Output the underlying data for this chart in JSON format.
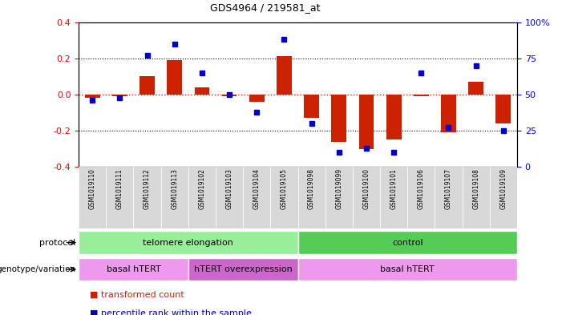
{
  "title": "GDS4964 / 219581_at",
  "samples": [
    "GSM1019110",
    "GSM1019111",
    "GSM1019112",
    "GSM1019113",
    "GSM1019102",
    "GSM1019103",
    "GSM1019104",
    "GSM1019105",
    "GSM1019098",
    "GSM1019099",
    "GSM1019100",
    "GSM1019101",
    "GSM1019106",
    "GSM1019107",
    "GSM1019108",
    "GSM1019109"
  ],
  "transformed_count": [
    -0.02,
    -0.01,
    0.1,
    0.19,
    0.04,
    -0.01,
    -0.04,
    0.21,
    -0.13,
    -0.26,
    -0.3,
    -0.25,
    -0.01,
    -0.21,
    0.07,
    -0.16
  ],
  "percentile_rank": [
    46,
    48,
    77,
    85,
    65,
    50,
    38,
    88,
    30,
    10,
    13,
    10,
    65,
    27,
    70,
    25
  ],
  "ylim_left": [
    -0.4,
    0.4
  ],
  "ylim_right": [
    0,
    100
  ],
  "bar_color": "#cc2200",
  "dot_color": "#0000cc",
  "protocol_groups": [
    {
      "label": "telomere elongation",
      "start": 0,
      "end": 7,
      "color": "#99ee99"
    },
    {
      "label": "control",
      "start": 8,
      "end": 15,
      "color": "#55cc55"
    }
  ],
  "genotype_groups": [
    {
      "label": "basal hTERT",
      "start": 0,
      "end": 3,
      "color": "#ee99ee"
    },
    {
      "label": "hTERT overexpression",
      "start": 4,
      "end": 7,
      "color": "#cc66cc"
    },
    {
      "label": "basal hTERT",
      "start": 8,
      "end": 15,
      "color": "#ee99ee"
    }
  ],
  "protocol_label": "protocol",
  "genotype_label": "genotype/variation",
  "legend_items": [
    {
      "color": "#cc2200",
      "label": "transformed count"
    },
    {
      "color": "#0000cc",
      "label": "percentile rank within the sample"
    }
  ],
  "yticks_left": [
    -0.4,
    -0.2,
    0.0,
    0.2,
    0.4
  ],
  "yticks_right": [
    0,
    25,
    50,
    75,
    100
  ],
  "ytick_labels_right": [
    "0",
    "25",
    "50",
    "75",
    "100%"
  ]
}
